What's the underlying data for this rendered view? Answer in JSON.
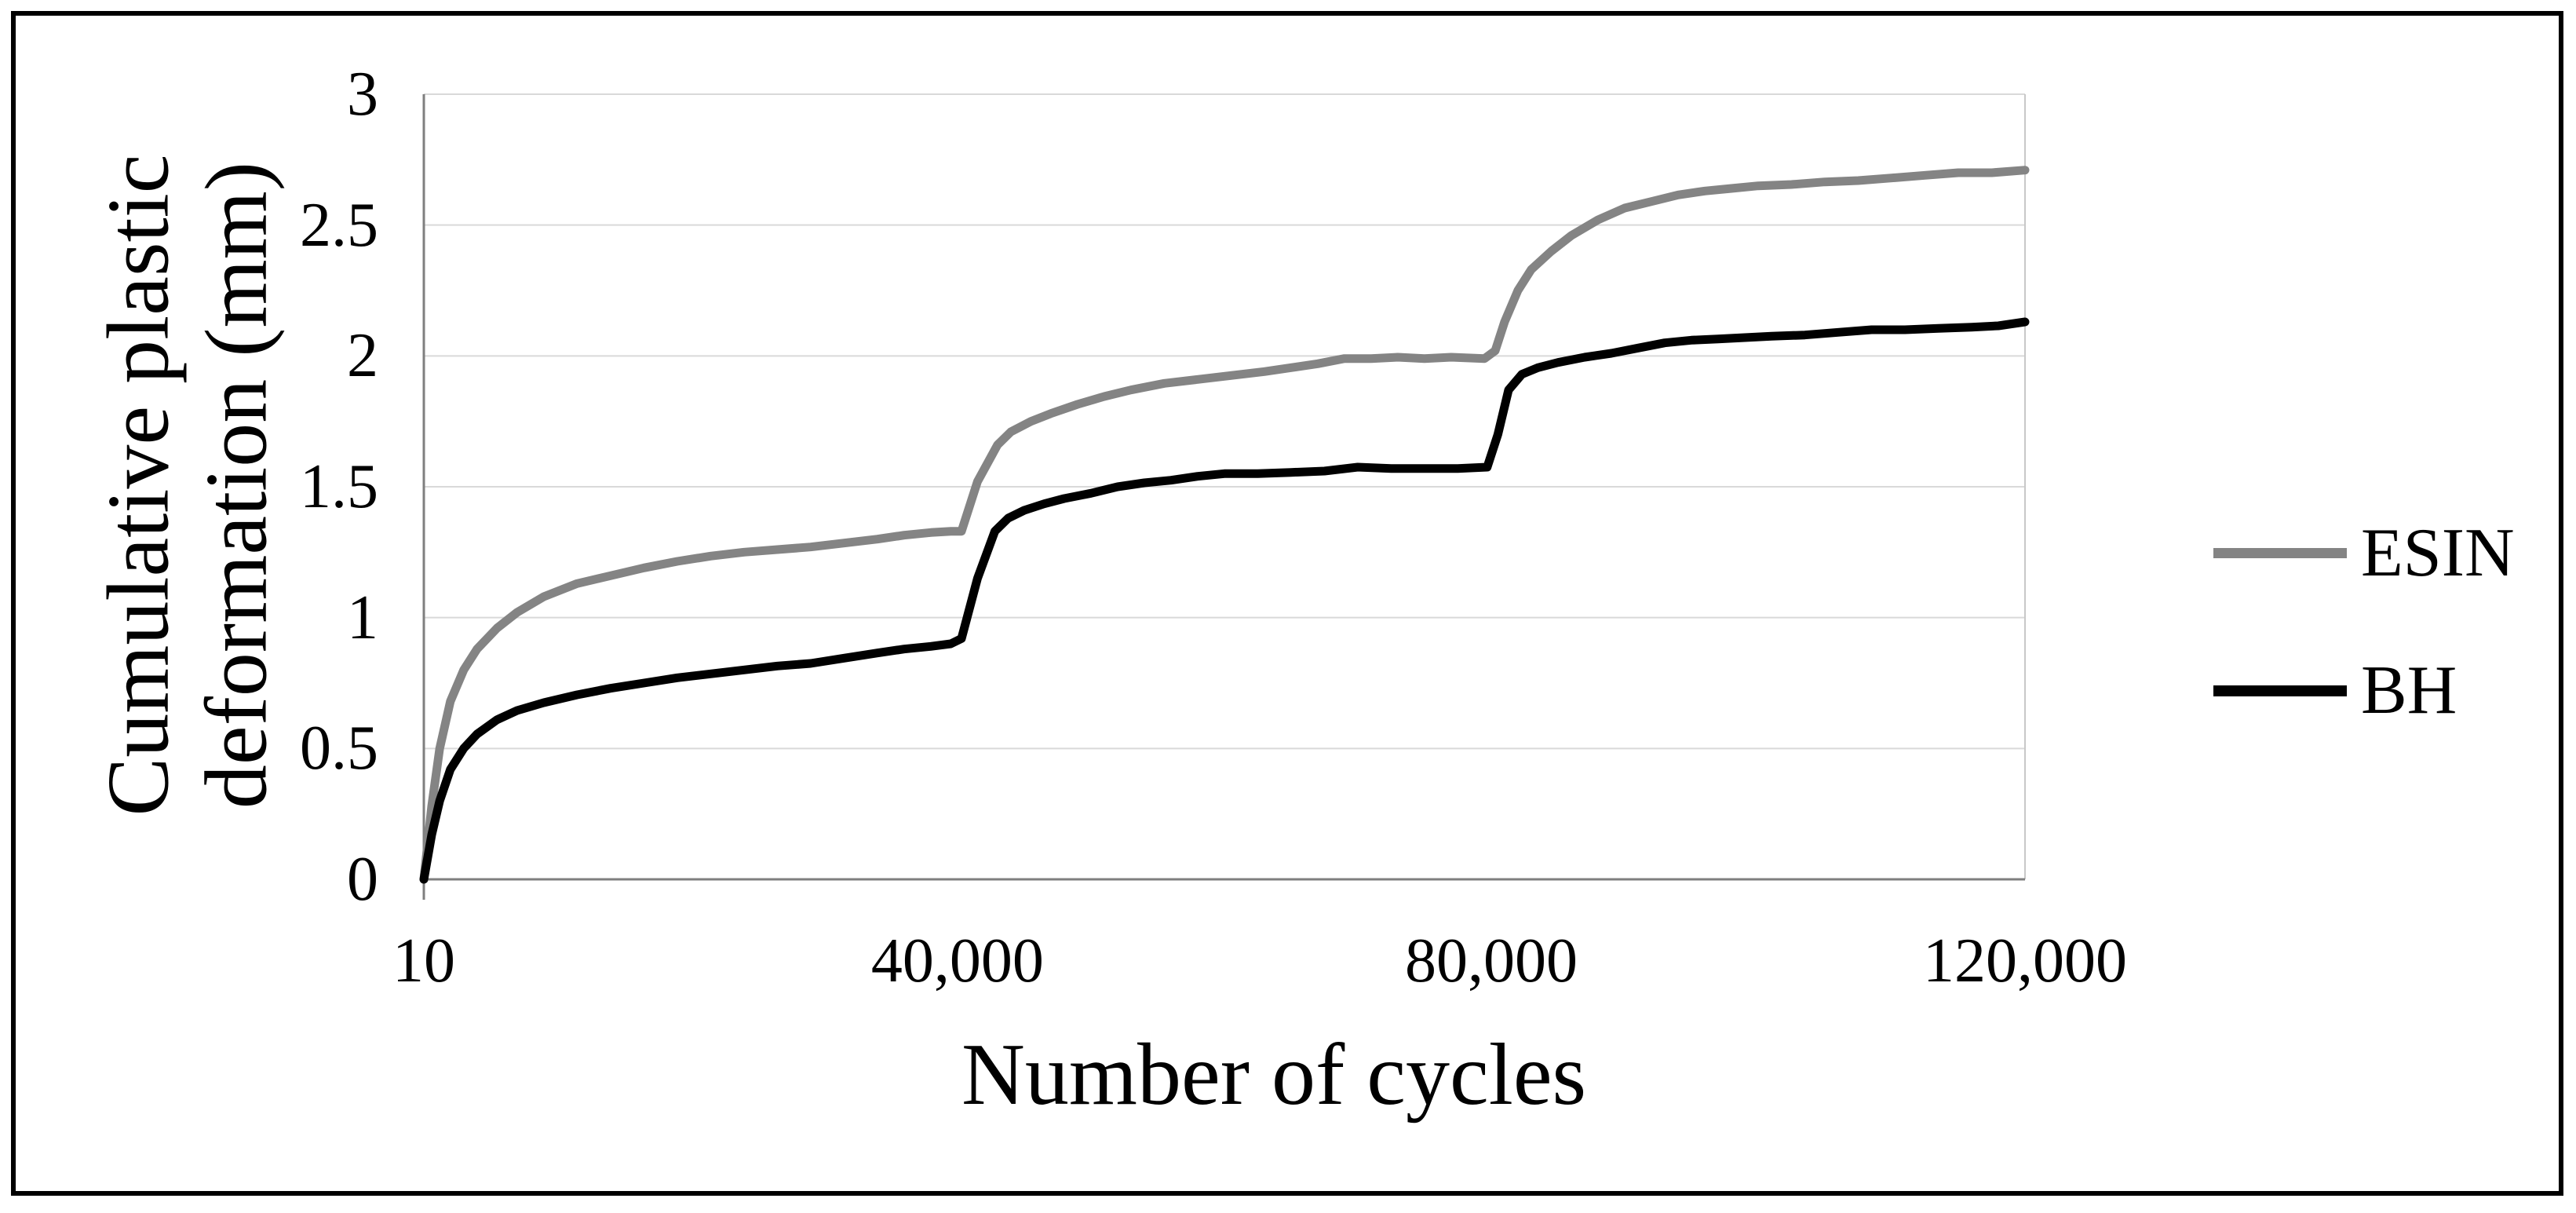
{
  "colors": {
    "esin_line": "#848484",
    "bh_line": "#000000",
    "gridline": "#d9d9d9",
    "axis_line": "#7f7f7f",
    "plot_right_border": "#c8c8c8",
    "frame_border": "#000000",
    "text": "#000000",
    "background": "#ffffff"
  },
  "y_axis": {
    "title_line1": "Cumulative plastic",
    "title_line2": "deformation (mm)",
    "min": 0,
    "max": 3,
    "ticks": [
      {
        "label": "0",
        "value": 0
      },
      {
        "label": "0.5",
        "value": 0.5
      },
      {
        "label": "1",
        "value": 1
      },
      {
        "label": "1.5",
        "value": 1.5
      },
      {
        "label": "2",
        "value": 2
      },
      {
        "label": "2.5",
        "value": 2.5
      },
      {
        "label": "3",
        "value": 3
      }
    ]
  },
  "x_axis": {
    "title": "Number of cycles",
    "min": 10,
    "max": 120000,
    "ticks": [
      {
        "label": "10",
        "value": 10
      },
      {
        "label": "40,000",
        "value": 40000
      },
      {
        "label": "80,000",
        "value": 80000
      },
      {
        "label": "120,000",
        "value": 120000
      }
    ]
  },
  "legend": {
    "position": "right",
    "entries": [
      {
        "label": "ESIN",
        "color": "#848484"
      },
      {
        "label": "BH",
        "color": "#000000"
      }
    ]
  },
  "chart_data": {
    "type": "line",
    "title": "",
    "xlabel": "Number of cycles",
    "ylabel": "Cumulative plastic deformation (mm)",
    "xlim": [
      10,
      120000
    ],
    "ylim": [
      0,
      3
    ],
    "grid": "horizontal",
    "legend_position": "right",
    "series": [
      {
        "name": "ESIN",
        "color": "#848484",
        "points": [
          [
            10,
            0
          ],
          [
            600,
            0.28
          ],
          [
            1200,
            0.5
          ],
          [
            2000,
            0.68
          ],
          [
            3000,
            0.8
          ],
          [
            4000,
            0.88
          ],
          [
            5500,
            0.96
          ],
          [
            7000,
            1.02
          ],
          [
            9000,
            1.08
          ],
          [
            11500,
            1.13
          ],
          [
            14000,
            1.16
          ],
          [
            16500,
            1.19
          ],
          [
            19000,
            1.215
          ],
          [
            21500,
            1.235
          ],
          [
            24000,
            1.25
          ],
          [
            26500,
            1.26
          ],
          [
            29000,
            1.27
          ],
          [
            31500,
            1.285
          ],
          [
            34000,
            1.3
          ],
          [
            36000,
            1.315
          ],
          [
            38000,
            1.325
          ],
          [
            39500,
            1.33
          ],
          [
            40300,
            1.33
          ],
          [
            41500,
            1.52
          ],
          [
            43000,
            1.66
          ],
          [
            44000,
            1.71
          ],
          [
            45500,
            1.75
          ],
          [
            47000,
            1.78
          ],
          [
            49000,
            1.815
          ],
          [
            51000,
            1.845
          ],
          [
            53000,
            1.87
          ],
          [
            55500,
            1.895
          ],
          [
            58000,
            1.91
          ],
          [
            60500,
            1.925
          ],
          [
            63000,
            1.94
          ],
          [
            65000,
            1.955
          ],
          [
            67000,
            1.97
          ],
          [
            69000,
            1.99
          ],
          [
            71000,
            1.99
          ],
          [
            73000,
            1.995
          ],
          [
            75000,
            1.99
          ],
          [
            77000,
            1.995
          ],
          [
            79500,
            1.99
          ],
          [
            80300,
            2.02
          ],
          [
            81000,
            2.13
          ],
          [
            82000,
            2.25
          ],
          [
            83000,
            2.33
          ],
          [
            84500,
            2.4
          ],
          [
            86000,
            2.46
          ],
          [
            88000,
            2.52
          ],
          [
            90000,
            2.565
          ],
          [
            92000,
            2.59
          ],
          [
            94000,
            2.615
          ],
          [
            96000,
            2.63
          ],
          [
            98000,
            2.64
          ],
          [
            100000,
            2.65
          ],
          [
            102500,
            2.655
          ],
          [
            105000,
            2.665
          ],
          [
            107500,
            2.67
          ],
          [
            110000,
            2.68
          ],
          [
            112500,
            2.69
          ],
          [
            115000,
            2.7
          ],
          [
            117500,
            2.7
          ],
          [
            120000,
            2.71
          ]
        ]
      },
      {
        "name": "BH",
        "color": "#000000",
        "points": [
          [
            10,
            0
          ],
          [
            600,
            0.17
          ],
          [
            1200,
            0.3
          ],
          [
            2000,
            0.42
          ],
          [
            3000,
            0.5
          ],
          [
            4000,
            0.555
          ],
          [
            5500,
            0.61
          ],
          [
            7000,
            0.645
          ],
          [
            9000,
            0.675
          ],
          [
            11500,
            0.705
          ],
          [
            14000,
            0.73
          ],
          [
            16500,
            0.75
          ],
          [
            19000,
            0.77
          ],
          [
            21500,
            0.785
          ],
          [
            24000,
            0.8
          ],
          [
            26500,
            0.815
          ],
          [
            29000,
            0.825
          ],
          [
            31500,
            0.845
          ],
          [
            34000,
            0.865
          ],
          [
            36000,
            0.88
          ],
          [
            38000,
            0.89
          ],
          [
            39500,
            0.9
          ],
          [
            40300,
            0.92
          ],
          [
            41500,
            1.15
          ],
          [
            42800,
            1.33
          ],
          [
            43800,
            1.38
          ],
          [
            45000,
            1.41
          ],
          [
            46500,
            1.435
          ],
          [
            48000,
            1.455
          ],
          [
            50000,
            1.475
          ],
          [
            52000,
            1.5
          ],
          [
            54000,
            1.515
          ],
          [
            56000,
            1.525
          ],
          [
            58000,
            1.54
          ],
          [
            60000,
            1.55
          ],
          [
            62500,
            1.55
          ],
          [
            65000,
            1.555
          ],
          [
            67500,
            1.56
          ],
          [
            70000,
            1.575
          ],
          [
            72500,
            1.57
          ],
          [
            75000,
            1.57
          ],
          [
            77500,
            1.57
          ],
          [
            79700,
            1.575
          ],
          [
            80500,
            1.7
          ],
          [
            81300,
            1.87
          ],
          [
            82300,
            1.93
          ],
          [
            83500,
            1.955
          ],
          [
            85000,
            1.975
          ],
          [
            87000,
            1.995
          ],
          [
            89000,
            2.01
          ],
          [
            91000,
            2.03
          ],
          [
            93000,
            2.05
          ],
          [
            95000,
            2.06
          ],
          [
            97000,
            2.065
          ],
          [
            99000,
            2.07
          ],
          [
            101000,
            2.075
          ],
          [
            103500,
            2.08
          ],
          [
            106000,
            2.09
          ],
          [
            108500,
            2.1
          ],
          [
            111000,
            2.1
          ],
          [
            113500,
            2.105
          ],
          [
            116000,
            2.11
          ],
          [
            118000,
            2.115
          ],
          [
            120000,
            2.13
          ]
        ]
      }
    ]
  }
}
